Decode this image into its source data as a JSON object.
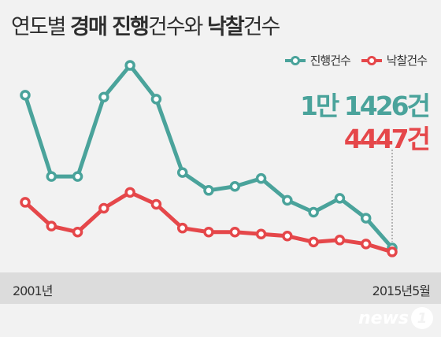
{
  "title": {
    "part1": "연도별 ",
    "part2": "경매 진행",
    "part3": "건수와 ",
    "part4": "낙찰",
    "part5": "건수"
  },
  "legend": [
    {
      "name": "진행건수",
      "color": "#4aa39b"
    },
    {
      "name": "낙찰건수",
      "color": "#e5474a"
    }
  ],
  "callouts": {
    "progress": "1만 1426건",
    "winning": "4447건"
  },
  "axis": {
    "start_label": "2001년",
    "end_label": "2015년5월"
  },
  "logo": {
    "text": "news",
    "badge": "1"
  },
  "chart_data": {
    "type": "line",
    "x": [
      "2001",
      "2002",
      "2003",
      "2004",
      "2005",
      "2006",
      "2007",
      "2008",
      "2009",
      "2010",
      "2011",
      "2012",
      "2013",
      "2014",
      "2015.5"
    ],
    "series": [
      {
        "name": "진행건수",
        "color": "#4aa39b",
        "values": [
          83,
          42,
          42,
          82,
          98,
          81,
          44,
          35,
          37,
          41,
          30,
          24,
          31,
          21,
          6
        ]
      },
      {
        "name": "낙찰건수",
        "color": "#e5474a",
        "values": [
          29,
          17,
          14,
          26,
          34,
          28,
          16,
          14,
          14,
          13,
          12,
          9,
          10,
          8,
          4
        ]
      }
    ],
    "ylim": [
      0,
      100
    ],
    "grid": false,
    "legend_position": "top-right",
    "start_label": "2001년",
    "end_label": "2015년5월"
  }
}
